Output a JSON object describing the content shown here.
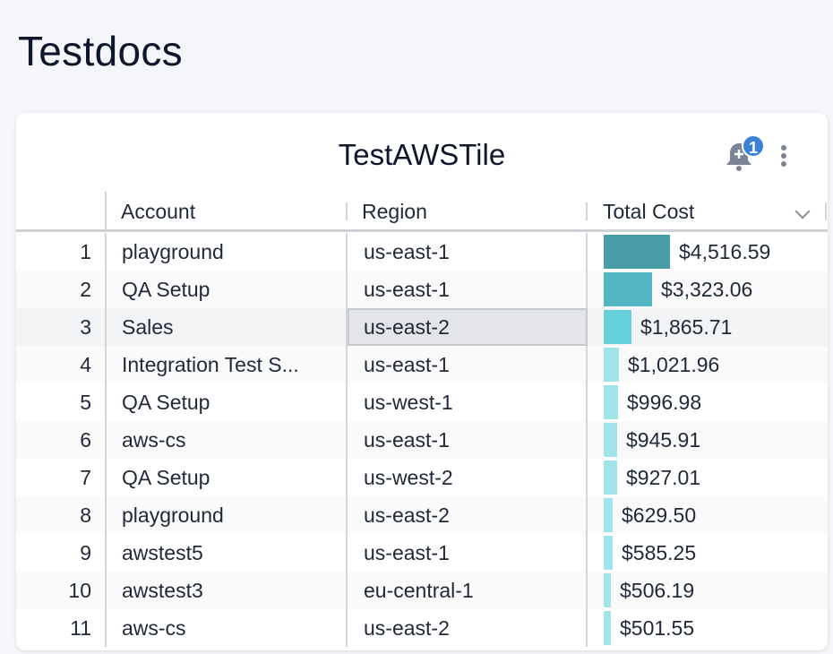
{
  "page": {
    "title": "Testdocs"
  },
  "tile": {
    "title": "TestAWSTile",
    "notification_count": "1",
    "icons": [
      "bell-plus-icon",
      "kebab-menu-icon"
    ]
  },
  "table": {
    "columns": [
      "Account",
      "Region",
      "Total Cost"
    ],
    "sort_icon": "chevron-down-icon",
    "bar_colors": [
      "#479ca5",
      "#52b5c2",
      "#66cfdc",
      "#a0e4ea"
    ],
    "selected_cell": {
      "row": 3,
      "column": "Region"
    },
    "rows": [
      {
        "index": "1",
        "account": "playground",
        "region": "us-east-1",
        "cost": "$4,516.59",
        "value": 4516.59
      },
      {
        "index": "2",
        "account": "QA Setup",
        "region": "us-east-1",
        "cost": "$3,323.06",
        "value": 3323.06
      },
      {
        "index": "3",
        "account": "Sales",
        "region": "us-east-2",
        "cost": "$1,865.71",
        "value": 1865.71
      },
      {
        "index": "4",
        "account": "Integration Test S...",
        "region": "us-east-1",
        "cost": "$1,021.96",
        "value": 1021.96
      },
      {
        "index": "5",
        "account": "QA Setup",
        "region": "us-west-1",
        "cost": "$996.98",
        "value": 996.98
      },
      {
        "index": "6",
        "account": "aws-cs",
        "region": "us-east-1",
        "cost": "$945.91",
        "value": 945.91
      },
      {
        "index": "7",
        "account": "QA Setup",
        "region": "us-west-2",
        "cost": "$927.01",
        "value": 927.01
      },
      {
        "index": "8",
        "account": "playground",
        "region": "us-east-2",
        "cost": "$629.50",
        "value": 629.5
      },
      {
        "index": "9",
        "account": "awstest5",
        "region": "us-east-1",
        "cost": "$585.25",
        "value": 585.25
      },
      {
        "index": "10",
        "account": "awstest3",
        "region": "eu-central-1",
        "cost": "$506.19",
        "value": 506.19
      },
      {
        "index": "11",
        "account": "aws-cs",
        "region": "us-east-2",
        "cost": "$501.55",
        "value": 501.55
      }
    ]
  }
}
